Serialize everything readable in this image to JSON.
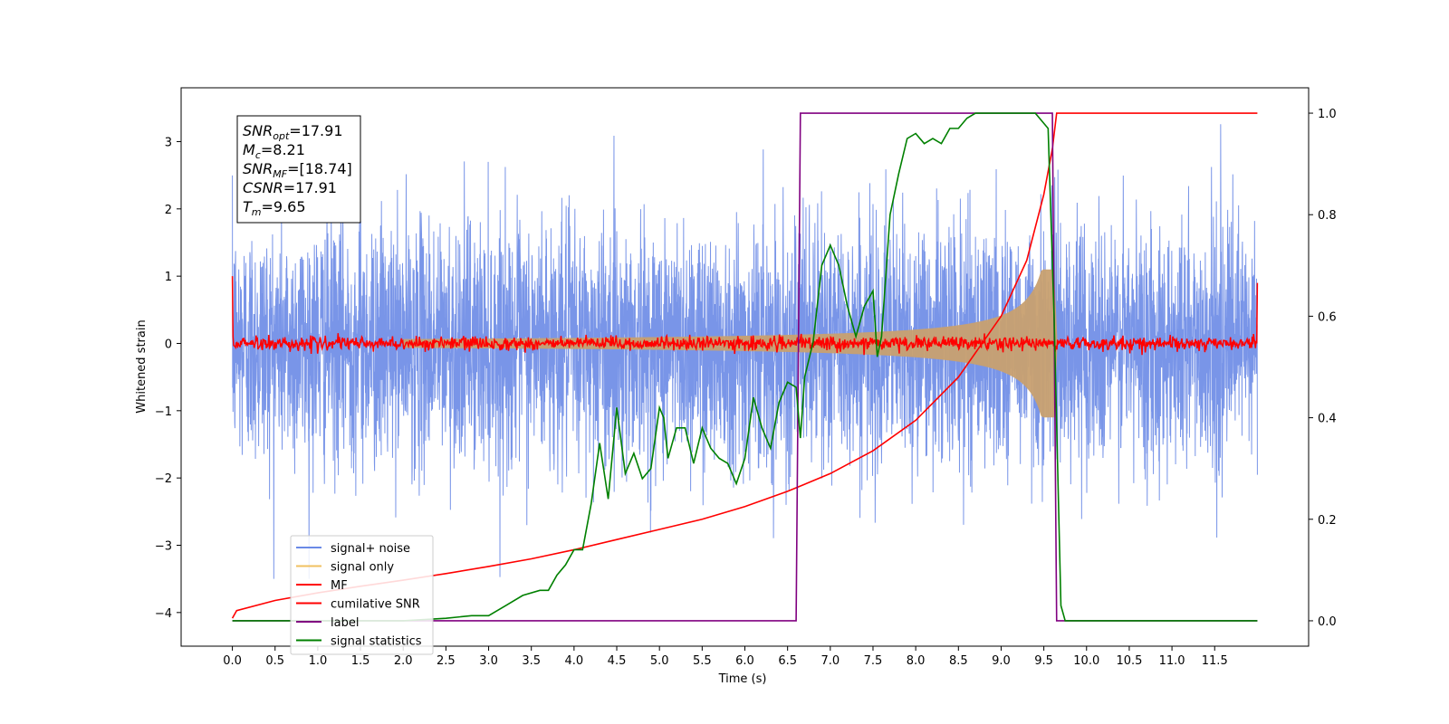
{
  "chart_data": {
    "type": "line",
    "xlabel": "Time (s)",
    "ylabel": "Whitened strain",
    "x_ticks": [
      "0.0",
      "0.5",
      "1.0",
      "1.5",
      "2.0",
      "2.5",
      "3.0",
      "3.5",
      "4.0",
      "4.5",
      "5.0",
      "5.5",
      "6.0",
      "6.5",
      "7.0",
      "7.5",
      "8.0",
      "8.5",
      "9.0",
      "9.5",
      "10.0",
      "10.5",
      "11.0",
      "11.5"
    ],
    "y_ticks": [
      "3",
      "2",
      "1",
      "0",
      "−1",
      "−2",
      "−3",
      "−4"
    ],
    "y2_ticks": [
      "1.0",
      "0.8",
      "0.6",
      "0.4",
      "0.2",
      "0.0"
    ],
    "xlim": [
      -0.6,
      12.6
    ],
    "ylim": [
      -4.5,
      3.8
    ],
    "y2lim": [
      -0.05,
      1.05
    ],
    "annotation": [
      {
        "sym": "SNR",
        "sub": "opt",
        "val": "=17.91"
      },
      {
        "sym": "M",
        "sub": "c",
        "val": "=8.21"
      },
      {
        "sym": "SNR",
        "sub": "MF",
        "val": "=[18.74]"
      },
      {
        "sym": "CSNR",
        "sub": "",
        "val": "=17.91"
      },
      {
        "sym": "T",
        "sub": "m",
        "val": "=9.65"
      }
    ],
    "legend_position": "lower left",
    "legend": [
      "signal+ noise",
      "signal only",
      "MF",
      "cumilative SNR",
      "label",
      "signal statistics"
    ],
    "colors": {
      "signal_noise": "#6a8ae6",
      "signal_only": "#f0c060",
      "mf": "#ff0000",
      "cumulative": "#ff0000",
      "label": "#800080",
      "statistics": "#008000"
    },
    "series": [
      {
        "name": "signal+ noise",
        "axis": "left",
        "generated": "gaussian noise, std 0.9, range approx -3.5 to 3.4, t = 0 to 12",
        "range": [
          -3.5,
          3.4
        ]
      },
      {
        "name": "signal only",
        "axis": "left",
        "generated": "chirp envelope rising to approx ±1.1 at t = 9.6, merger at 9.65",
        "peak_amplitude": 1.1
      },
      {
        "name": "MF",
        "axis": "left",
        "generated": "noise around 0 with std 0.05, spikes to 1.0 at t = 0 and 0.9 at t = 12"
      },
      {
        "name": "cumilative SNR",
        "axis": "right",
        "x": [
          0.0,
          0.05,
          0.5,
          1.0,
          1.5,
          2.0,
          2.5,
          3.0,
          3.5,
          4.0,
          4.5,
          5.0,
          5.5,
          6.0,
          6.5,
          7.0,
          7.5,
          8.0,
          8.5,
          9.0,
          9.3,
          9.5,
          9.6,
          9.65,
          12.0
        ],
        "y": [
          0.005,
          0.02,
          0.04,
          0.055,
          0.068,
          0.08,
          0.093,
          0.107,
          0.122,
          0.14,
          0.16,
          0.18,
          0.2,
          0.225,
          0.255,
          0.29,
          0.335,
          0.395,
          0.48,
          0.6,
          0.71,
          0.84,
          0.93,
          1.0,
          1.0
        ]
      },
      {
        "name": "label",
        "axis": "right",
        "x": [
          0.0,
          6.6,
          6.65,
          9.6,
          9.65,
          12.0
        ],
        "y": [
          0.0,
          0.0,
          1.0,
          1.0,
          0.0,
          0.0
        ]
      },
      {
        "name": "signal statistics",
        "axis": "right",
        "x": [
          0.0,
          0.5,
          1.0,
          1.5,
          2.0,
          2.5,
          2.8,
          3.0,
          3.2,
          3.4,
          3.6,
          3.7,
          3.8,
          3.9,
          4.0,
          4.1,
          4.2,
          4.3,
          4.4,
          4.5,
          4.6,
          4.7,
          4.8,
          4.9,
          5.0,
          5.05,
          5.1,
          5.2,
          5.3,
          5.4,
          5.5,
          5.6,
          5.7,
          5.8,
          5.9,
          6.0,
          6.05,
          6.1,
          6.2,
          6.3,
          6.4,
          6.5,
          6.6,
          6.65,
          6.7,
          6.8,
          6.9,
          7.0,
          7.1,
          7.2,
          7.3,
          7.4,
          7.5,
          7.55,
          7.6,
          7.7,
          7.8,
          7.9,
          8.0,
          8.1,
          8.2,
          8.3,
          8.4,
          8.5,
          8.6,
          8.7,
          8.8,
          8.9,
          9.0,
          9.2,
          9.4,
          9.55,
          9.62,
          9.7,
          9.75,
          9.8,
          12.0
        ],
        "y": [
          0.0,
          0.0,
          0.0,
          0.0,
          0.0,
          0.005,
          0.01,
          0.01,
          0.03,
          0.05,
          0.06,
          0.06,
          0.09,
          0.11,
          0.14,
          0.14,
          0.23,
          0.35,
          0.24,
          0.42,
          0.29,
          0.33,
          0.28,
          0.3,
          0.42,
          0.4,
          0.32,
          0.38,
          0.38,
          0.31,
          0.38,
          0.34,
          0.32,
          0.31,
          0.27,
          0.32,
          0.38,
          0.44,
          0.38,
          0.34,
          0.43,
          0.47,
          0.46,
          0.36,
          0.48,
          0.55,
          0.7,
          0.74,
          0.7,
          0.62,
          0.56,
          0.62,
          0.65,
          0.52,
          0.56,
          0.8,
          0.88,
          0.95,
          0.96,
          0.94,
          0.95,
          0.94,
          0.97,
          0.97,
          0.99,
          1.0,
          1.0,
          1.0,
          1.0,
          1.0,
          1.0,
          0.97,
          0.6,
          0.03,
          0.0,
          0.0,
          0.0
        ]
      }
    ]
  }
}
